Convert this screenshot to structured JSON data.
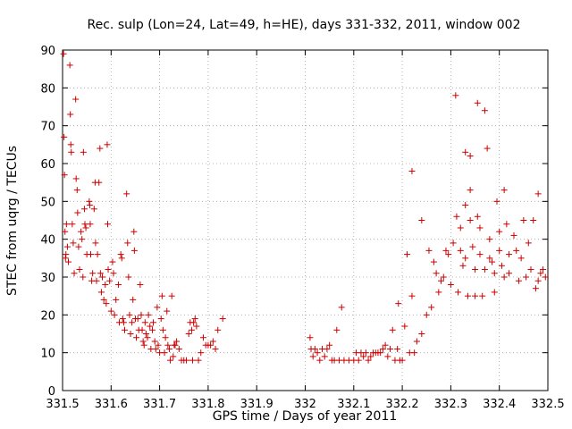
{
  "chart_data": {
    "type": "scatter",
    "title": "Rec. sulp (Lon=24, Lat=49, h=HE), days 331-332, 2011, window 002",
    "xlabel": "GPS time / Days of year 2011",
    "ylabel": "STEC from uqrg / TECUs",
    "xlim": [
      331.5,
      332.5
    ],
    "ylim": [
      0,
      90
    ],
    "x_ticks": [
      "331.5",
      "331.6",
      "331.7",
      "331.8",
      "331.9",
      "332",
      "332.1",
      "332.2",
      "332.3",
      "332.4",
      "332.5"
    ],
    "y_ticks": [
      "0",
      "10",
      "20",
      "30",
      "40",
      "50",
      "60",
      "70",
      "80",
      "90"
    ],
    "grid": true,
    "marker": "+",
    "color": "#cc0000",
    "series": [
      {
        "name": "STEC",
        "points": [
          [
            331.502,
            89
          ],
          [
            331.503,
            67
          ],
          [
            331.504,
            57
          ],
          [
            331.505,
            42
          ],
          [
            331.506,
            35
          ],
          [
            331.507,
            36
          ],
          [
            331.508,
            44
          ],
          [
            331.51,
            38
          ],
          [
            331.512,
            34
          ],
          [
            331.515,
            86
          ],
          [
            331.516,
            73
          ],
          [
            331.517,
            65
          ],
          [
            331.518,
            63
          ],
          [
            331.52,
            44
          ],
          [
            331.522,
            39
          ],
          [
            331.524,
            31
          ],
          [
            331.527,
            77
          ],
          [
            331.528,
            56
          ],
          [
            331.53,
            53
          ],
          [
            331.531,
            47
          ],
          [
            331.533,
            38
          ],
          [
            331.535,
            32
          ],
          [
            331.538,
            42
          ],
          [
            331.54,
            40
          ],
          [
            331.542,
            30
          ],
          [
            331.543,
            63
          ],
          [
            331.545,
            48
          ],
          [
            331.546,
            44
          ],
          [
            331.548,
            43
          ],
          [
            331.55,
            36
          ],
          [
            331.555,
            50
          ],
          [
            331.556,
            49
          ],
          [
            331.557,
            44
          ],
          [
            331.558,
            36
          ],
          [
            331.56,
            29
          ],
          [
            331.562,
            31
          ],
          [
            331.565,
            48
          ],
          [
            331.567,
            55
          ],
          [
            331.568,
            39
          ],
          [
            331.57,
            29
          ],
          [
            331.572,
            36
          ],
          [
            331.575,
            55
          ],
          [
            331.577,
            64
          ],
          [
            331.578,
            31
          ],
          [
            331.58,
            26
          ],
          [
            331.582,
            30
          ],
          [
            331.585,
            24
          ],
          [
            331.588,
            28
          ],
          [
            331.59,
            23
          ],
          [
            331.592,
            65
          ],
          [
            331.593,
            44
          ],
          [
            331.594,
            32
          ],
          [
            331.597,
            29
          ],
          [
            331.6,
            21
          ],
          [
            331.603,
            34
          ],
          [
            331.605,
            31
          ],
          [
            331.607,
            20
          ],
          [
            331.61,
            24
          ],
          [
            331.615,
            28
          ],
          [
            331.617,
            18
          ],
          [
            331.62,
            36
          ],
          [
            331.622,
            35
          ],
          [
            331.624,
            19
          ],
          [
            331.626,
            18
          ],
          [
            331.628,
            16
          ],
          [
            331.632,
            52
          ],
          [
            331.634,
            39
          ],
          [
            331.636,
            30
          ],
          [
            331.638,
            20
          ],
          [
            331.64,
            15
          ],
          [
            331.643,
            18
          ],
          [
            331.645,
            24
          ],
          [
            331.647,
            42
          ],
          [
            331.648,
            37
          ],
          [
            331.65,
            19
          ],
          [
            331.652,
            14
          ],
          [
            331.655,
            19
          ],
          [
            331.657,
            16
          ],
          [
            331.66,
            28
          ],
          [
            331.662,
            20
          ],
          [
            331.664,
            16
          ],
          [
            331.666,
            13
          ],
          [
            331.668,
            12
          ],
          [
            331.67,
            18
          ],
          [
            331.672,
            15
          ],
          [
            331.675,
            14
          ],
          [
            331.677,
            20
          ],
          [
            331.68,
            17
          ],
          [
            331.682,
            11
          ],
          [
            331.685,
            16
          ],
          [
            331.687,
            18
          ],
          [
            331.69,
            13
          ],
          [
            331.692,
            11
          ],
          [
            331.695,
            22
          ],
          [
            331.697,
            12
          ],
          [
            331.7,
            10
          ],
          [
            331.703,
            19
          ],
          [
            331.705,
            25
          ],
          [
            331.707,
            16
          ],
          [
            331.71,
            10
          ],
          [
            331.712,
            14
          ],
          [
            331.715,
            21
          ],
          [
            331.717,
            12
          ],
          [
            331.72,
            11
          ],
          [
            331.722,
            8
          ],
          [
            331.725,
            25
          ],
          [
            331.728,
            9
          ],
          [
            331.73,
            12
          ],
          [
            331.732,
            12
          ],
          [
            331.735,
            13
          ],
          [
            331.74,
            11
          ],
          [
            331.745,
            8
          ],
          [
            331.75,
            8
          ],
          [
            331.755,
            8
          ],
          [
            331.76,
            15
          ],
          [
            331.763,
            18
          ],
          [
            331.766,
            16
          ],
          [
            331.768,
            8
          ],
          [
            331.77,
            18
          ],
          [
            331.773,
            19
          ],
          [
            331.776,
            17
          ],
          [
            331.78,
            8
          ],
          [
            331.785,
            10
          ],
          [
            331.79,
            14
          ],
          [
            331.795,
            12
          ],
          [
            331.8,
            12
          ],
          [
            331.805,
            12
          ],
          [
            331.81,
            13
          ],
          [
            331.815,
            11
          ],
          [
            331.82,
            16
          ],
          [
            331.83,
            19
          ],
          [
            332.01,
            14
          ],
          [
            332.012,
            11
          ],
          [
            332.016,
            9
          ],
          [
            332.02,
            11
          ],
          [
            332.025,
            10
          ],
          [
            332.03,
            8
          ],
          [
            332.035,
            11
          ],
          [
            332.04,
            9
          ],
          [
            332.045,
            11
          ],
          [
            332.05,
            12
          ],
          [
            332.055,
            8
          ],
          [
            332.06,
            8
          ],
          [
            332.065,
            16
          ],
          [
            332.07,
            8
          ],
          [
            332.075,
            22
          ],
          [
            332.08,
            8
          ],
          [
            332.09,
            8
          ],
          [
            332.1,
            8
          ],
          [
            332.105,
            10
          ],
          [
            332.11,
            8
          ],
          [
            332.115,
            10
          ],
          [
            332.12,
            9
          ],
          [
            332.125,
            10
          ],
          [
            332.13,
            8
          ],
          [
            332.135,
            9
          ],
          [
            332.14,
            10
          ],
          [
            332.145,
            10
          ],
          [
            332.15,
            10
          ],
          [
            332.155,
            10
          ],
          [
            332.16,
            11
          ],
          [
            332.165,
            12
          ],
          [
            332.17,
            9
          ],
          [
            332.175,
            11
          ],
          [
            332.18,
            16
          ],
          [
            332.185,
            8
          ],
          [
            332.19,
            11
          ],
          [
            332.192,
            23
          ],
          [
            332.195,
            8
          ],
          [
            332.2,
            8
          ],
          [
            332.205,
            17
          ],
          [
            332.21,
            36
          ],
          [
            332.215,
            10
          ],
          [
            332.22,
            25
          ],
          [
            332.22,
            58
          ],
          [
            332.225,
            10
          ],
          [
            332.23,
            13
          ],
          [
            332.24,
            15
          ],
          [
            332.24,
            45
          ],
          [
            332.25,
            20
          ],
          [
            332.255,
            37
          ],
          [
            332.26,
            22
          ],
          [
            332.265,
            34
          ],
          [
            332.27,
            31
          ],
          [
            332.275,
            26
          ],
          [
            332.28,
            29
          ],
          [
            332.285,
            30
          ],
          [
            332.29,
            37
          ],
          [
            332.295,
            36
          ],
          [
            332.3,
            28
          ],
          [
            332.305,
            39
          ],
          [
            332.31,
            78
          ],
          [
            332.312,
            46
          ],
          [
            332.315,
            26
          ],
          [
            332.32,
            43
          ],
          [
            332.32,
            37
          ],
          [
            332.325,
            33
          ],
          [
            332.33,
            35
          ],
          [
            332.33,
            63
          ],
          [
            332.33,
            49
          ],
          [
            332.335,
            25
          ],
          [
            332.34,
            62
          ],
          [
            332.34,
            53
          ],
          [
            332.34,
            45
          ],
          [
            332.345,
            38
          ],
          [
            332.35,
            25
          ],
          [
            332.35,
            32
          ],
          [
            332.355,
            76
          ],
          [
            332.355,
            46
          ],
          [
            332.36,
            43
          ],
          [
            332.36,
            36
          ],
          [
            332.365,
            25
          ],
          [
            332.37,
            74
          ],
          [
            332.37,
            32
          ],
          [
            332.375,
            64
          ],
          [
            332.38,
            40
          ],
          [
            332.38,
            35
          ],
          [
            332.385,
            34
          ],
          [
            332.39,
            31
          ],
          [
            332.39,
            26
          ],
          [
            332.395,
            50
          ],
          [
            332.4,
            42
          ],
          [
            332.4,
            37
          ],
          [
            332.405,
            33
          ],
          [
            332.41,
            53
          ],
          [
            332.41,
            30
          ],
          [
            332.415,
            44
          ],
          [
            332.42,
            36
          ],
          [
            332.42,
            31
          ],
          [
            332.43,
            41
          ],
          [
            332.435,
            37
          ],
          [
            332.44,
            29
          ],
          [
            332.445,
            35
          ],
          [
            332.45,
            45
          ],
          [
            332.455,
            30
          ],
          [
            332.46,
            39
          ],
          [
            332.465,
            32
          ],
          [
            332.47,
            45
          ],
          [
            332.475,
            27
          ],
          [
            332.48,
            52
          ],
          [
            332.48,
            29
          ],
          [
            332.485,
            31
          ],
          [
            332.49,
            32
          ],
          [
            332.495,
            30
          ]
        ]
      }
    ]
  }
}
